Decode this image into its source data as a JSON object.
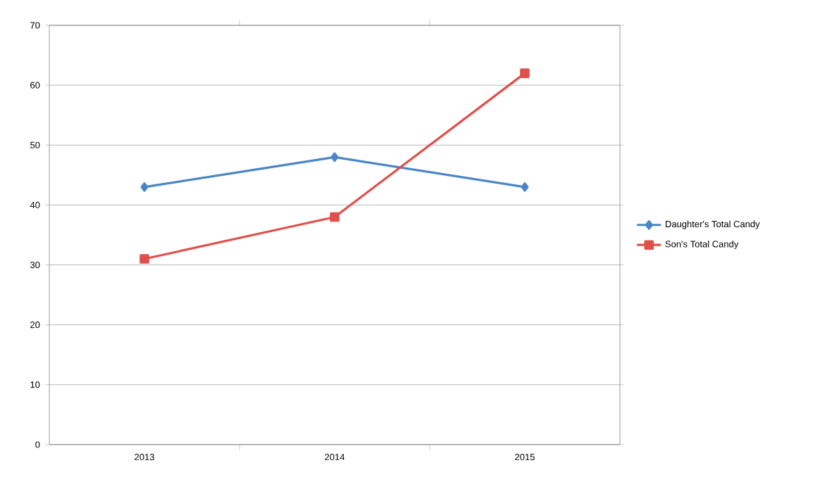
{
  "chart_data": {
    "type": "line",
    "categories": [
      "2013",
      "2014",
      "2015"
    ],
    "series": [
      {
        "name": "Daughter's Total Candy",
        "color": "#4a86c6",
        "values": [
          43,
          48,
          43
        ],
        "marker": "diamond"
      },
      {
        "name": "Son's Total Candy",
        "color": "#e0504a",
        "values": [
          31,
          38,
          62
        ],
        "marker": "square"
      }
    ],
    "ylim": [
      0,
      70
    ],
    "yticks": [
      0,
      10,
      20,
      30,
      40,
      50,
      60,
      70
    ],
    "grid": "y",
    "legend": "right",
    "line_style": "solid"
  }
}
